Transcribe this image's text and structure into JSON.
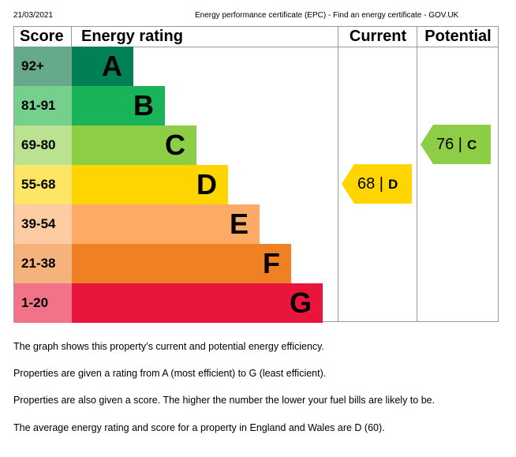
{
  "header": {
    "date": "21/03/2021",
    "title": "Energy performance certificate (EPC) - Find an energy certificate - GOV.UK"
  },
  "table": {
    "col_score": "Score",
    "col_rating": "Energy rating",
    "col_current": "Current",
    "col_potential": "Potential"
  },
  "bands": [
    {
      "score": "92+",
      "letter": "A",
      "color": "#008054",
      "light": "#66a98b"
    },
    {
      "score": "81-91",
      "letter": "B",
      "color": "#19b459",
      "light": "#75d08e"
    },
    {
      "score": "69-80",
      "letter": "C",
      "color": "#8dce46",
      "light": "#bbe290"
    },
    {
      "score": "55-68",
      "letter": "D",
      "color": "#ffd500",
      "light": "#ffe566"
    },
    {
      "score": "39-54",
      "letter": "E",
      "color": "#fcaa65",
      "light": "#fdcca3"
    },
    {
      "score": "21-38",
      "letter": "F",
      "color": "#ef8023",
      "light": "#f5b27b"
    },
    {
      "score": "1-20",
      "letter": "G",
      "color": "#e9153b",
      "light": "#f27389"
    }
  ],
  "current": {
    "score": "68 |",
    "letter": "D",
    "color": "#ffd500"
  },
  "potential": {
    "score": "76 |",
    "letter": "C",
    "color": "#8dce46"
  },
  "paragraphs": [
    "The graph shows this property’s current and potential energy efficiency.",
    "Properties are given a rating from A (most efficient) to G (least efficient).",
    "Properties are also given a score. The higher the number the lower your fuel bills are likely to be.",
    "The average energy rating and score for a property in England and Wales are D (60)."
  ]
}
